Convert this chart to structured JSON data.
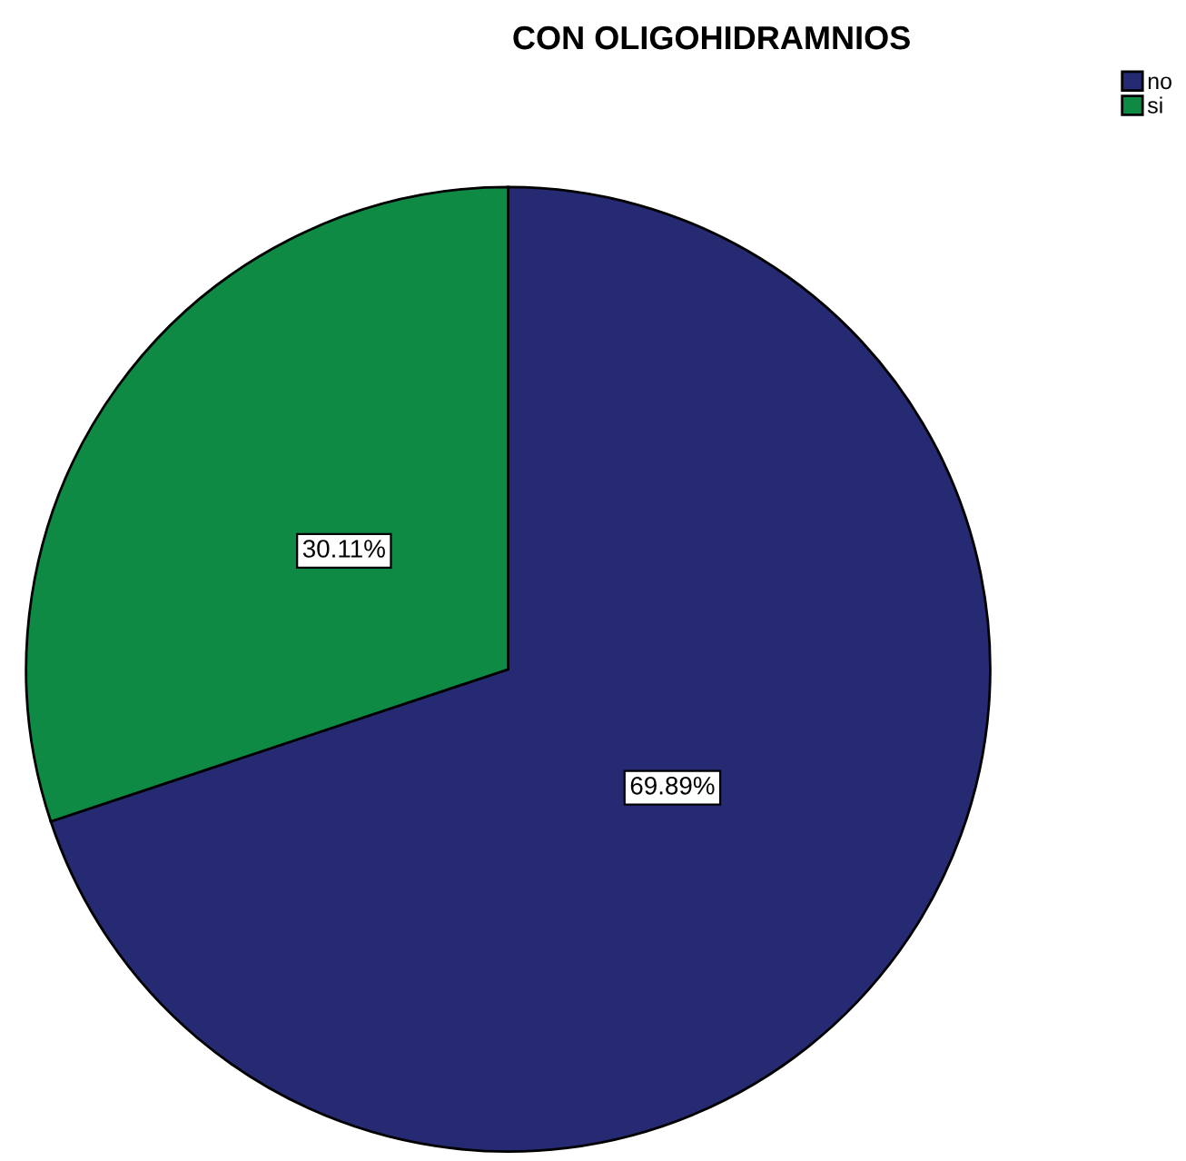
{
  "chart_data": {
    "type": "pie",
    "title": "CON OLIGOHIDRAMNIOS",
    "categories": [
      "no",
      "si"
    ],
    "values": [
      69.89,
      30.11
    ],
    "colors": [
      "#262a72",
      "#0e8a44"
    ],
    "value_labels": [
      "69.89%",
      "30.11%"
    ],
    "legend": "top right"
  }
}
